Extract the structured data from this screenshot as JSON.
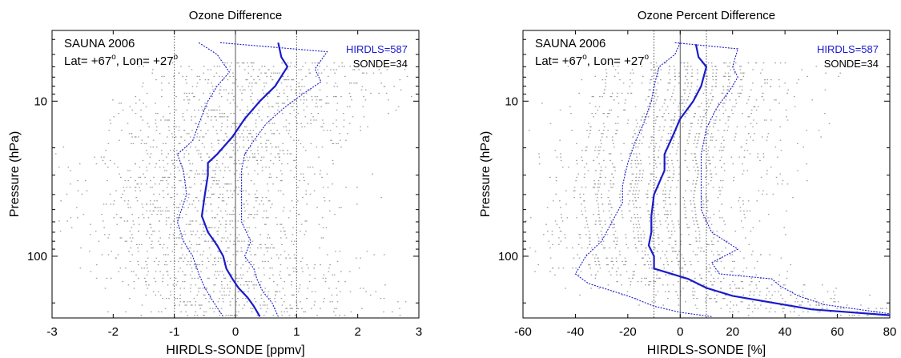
{
  "chart_data": [
    {
      "type": "line",
      "title": "Ozone Difference",
      "xlabel": "HIRDLS-SONDE  [ppmv]",
      "ylabel": "Pressure (hPa)",
      "xlim": [
        -3,
        3
      ],
      "ylim": [
        250,
        3.5
      ],
      "yscale": "log",
      "xticks": [
        "-3",
        "-2",
        "-1",
        "0",
        "1",
        "2",
        "3"
      ],
      "yticks": [
        {
          "v": 10,
          "label": "10"
        },
        {
          "v": 100,
          "label": "100"
        }
      ],
      "ref_lines_x": [
        -1,
        0,
        1
      ],
      "annotation_lines": [
        "SAUNA 2006",
        "Lat= +67",
        "o",
        ", Lon= +27",
        "o"
      ],
      "legend": [
        "HIRDLS=587",
        "SONDE=34"
      ],
      "colors": {
        "series": "#1a1acc",
        "scatter": "#9a9a9a"
      },
      "scatter_spread": 1.35,
      "series": [
        {
          "style": "solid",
          "points": [
            [
              0.7,
              4.2
            ],
            [
              0.75,
              5.2
            ],
            [
              0.85,
              6
            ],
            [
              0.65,
              8
            ],
            [
              0.4,
              10
            ],
            [
              0.15,
              13
            ],
            [
              -0.05,
              17
            ],
            [
              -0.3,
              22
            ],
            [
              -0.45,
              25
            ],
            [
              -0.45,
              30
            ],
            [
              -0.5,
              40
            ],
            [
              -0.55,
              55
            ],
            [
              -0.45,
              70
            ],
            [
              -0.3,
              85
            ],
            [
              -0.2,
              100
            ],
            [
              -0.15,
              120
            ],
            [
              -0.05,
              140
            ],
            [
              0.05,
              160
            ],
            [
              0.2,
              185
            ],
            [
              0.3,
              210
            ],
            [
              0.4,
              245
            ]
          ]
        },
        {
          "style": "dotted",
          "points": [
            [
              -0.6,
              4.2
            ],
            [
              -0.3,
              5
            ],
            [
              -0.1,
              6.5
            ],
            [
              -0.3,
              8
            ],
            [
              -0.45,
              10
            ],
            [
              -0.6,
              14
            ],
            [
              -0.7,
              18
            ],
            [
              -0.95,
              22
            ],
            [
              -0.85,
              28
            ],
            [
              -0.8,
              40
            ],
            [
              -0.95,
              60
            ],
            [
              -0.85,
              80
            ],
            [
              -0.7,
              100
            ],
            [
              -0.6,
              130
            ],
            [
              -0.5,
              160
            ],
            [
              -0.35,
              200
            ],
            [
              -0.2,
              245
            ]
          ]
        },
        {
          "style": "dotted",
          "points": [
            [
              -0.25,
              4.2
            ],
            [
              1.5,
              4.8
            ],
            [
              1.3,
              6.2
            ],
            [
              1.4,
              7.5
            ],
            [
              1.1,
              9
            ],
            [
              0.8,
              11
            ],
            [
              0.5,
              14
            ],
            [
              0.3,
              18
            ],
            [
              0.15,
              22
            ],
            [
              0.1,
              28
            ],
            [
              0.1,
              40
            ],
            [
              0.1,
              60
            ],
            [
              0.25,
              80
            ],
            [
              0.15,
              100
            ],
            [
              0.3,
              120
            ],
            [
              0.35,
              140
            ],
            [
              0.45,
              170
            ],
            [
              0.6,
              200
            ],
            [
              0.7,
              245
            ]
          ]
        }
      ]
    },
    {
      "type": "line",
      "title": "Ozone Percent Difference",
      "xlabel": "HIRDLS-SONDE  [%]",
      "ylabel": "Pressure (hPa)",
      "xlim": [
        -60,
        80
      ],
      "ylim": [
        250,
        3.5
      ],
      "yscale": "log",
      "xticks": [
        "-60",
        "-40",
        "-20",
        "0",
        "20",
        "40",
        "60",
        "80"
      ],
      "yticks": [
        {
          "v": 10,
          "label": "10"
        },
        {
          "v": 100,
          "label": "100"
        }
      ],
      "ref_lines_x": [
        -10,
        0,
        10
      ],
      "annotation_lines": [
        "SAUNA 2006",
        "Lat= +67",
        "o",
        ", Lon= +27",
        "o"
      ],
      "legend": [
        "HIRDLS=587",
        "SONDE=34"
      ],
      "colors": {
        "series": "#1a1acc",
        "scatter": "#9a9a9a"
      },
      "scatter_spread": 28,
      "series": [
        {
          "style": "solid",
          "points": [
            [
              6,
              4.3
            ],
            [
              7,
              5.2
            ],
            [
              10,
              6
            ],
            [
              8,
              8
            ],
            [
              5,
              10
            ],
            [
              0,
              13
            ],
            [
              -3,
              17
            ],
            [
              -6,
              22
            ],
            [
              -6,
              28
            ],
            [
              -10,
              40
            ],
            [
              -11,
              55
            ],
            [
              -11,
              70
            ],
            [
              -12,
              85
            ],
            [
              -10,
              100
            ],
            [
              -10,
              120
            ],
            [
              3,
              140
            ],
            [
              10,
              160
            ],
            [
              20,
              180
            ],
            [
              50,
              220
            ],
            [
              80,
              240
            ]
          ]
        },
        {
          "style": "dotted",
          "points": [
            [
              0,
              4.2
            ],
            [
              -2,
              5
            ],
            [
              -8,
              6
            ],
            [
              -10,
              8
            ],
            [
              -11,
              10
            ],
            [
              -14,
              14
            ],
            [
              -17,
              18
            ],
            [
              -20,
              25
            ],
            [
              -22,
              35
            ],
            [
              -22,
              45
            ],
            [
              -26,
              60
            ],
            [
              -30,
              80
            ],
            [
              -36,
              100
            ],
            [
              -40,
              130
            ],
            [
              -35,
              150
            ],
            [
              -20,
              180
            ],
            [
              -10,
              210
            ],
            [
              0,
              230
            ],
            [
              12,
              245
            ]
          ]
        },
        {
          "style": "dotted",
          "points": [
            [
              -2,
              4.2
            ],
            [
              22,
              4.6
            ],
            [
              20,
              6
            ],
            [
              22,
              7
            ],
            [
              19,
              8.5
            ],
            [
              14,
              11
            ],
            [
              10,
              15
            ],
            [
              8,
              22
            ],
            [
              8,
              35
            ],
            [
              8,
              50
            ],
            [
              12,
              70
            ],
            [
              22,
              90
            ],
            [
              12,
              110
            ],
            [
              15,
              130
            ],
            [
              35,
              140
            ],
            [
              38,
              155
            ],
            [
              45,
              180
            ],
            [
              55,
              205
            ],
            [
              80,
              235
            ]
          ]
        }
      ]
    }
  ]
}
